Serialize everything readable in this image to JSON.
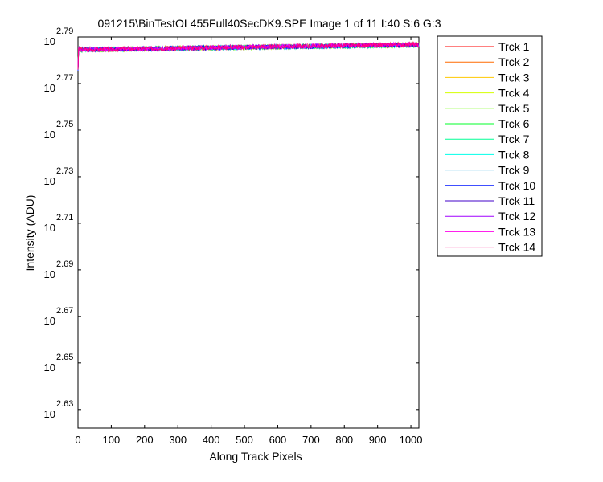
{
  "chart_data": {
    "type": "line",
    "title": "091215\\BinTestOL455Full40SecDK9.SPE  Image 1 of 11  I:40  S:6  G:3",
    "xlabel": "Along Track Pixels",
    "ylabel": "Intensity (ADU)",
    "xlim": [
      0,
      1024
    ],
    "ylim": [
      2.622,
      2.79
    ],
    "yscale": "log10",
    "x_ticks": [
      0,
      100,
      200,
      300,
      400,
      500,
      600,
      700,
      800,
      900,
      1000
    ],
    "x_tick_labels": [
      "0",
      "100",
      "200",
      "300",
      "400",
      "500",
      "600",
      "700",
      "800",
      "900",
      "1000"
    ],
    "y_tick_exponents": [
      2.63,
      2.65,
      2.67,
      2.69,
      2.71,
      2.73,
      2.75,
      2.77,
      2.79
    ],
    "y_tick_exponent_labels": [
      "2.63",
      "2.65",
      "2.67",
      "2.69",
      "2.71",
      "2.73",
      "2.75",
      "2.77",
      "2.79"
    ],
    "y_tick_base": "10",
    "legend_position": "outside-right",
    "grid": false,
    "series": [
      {
        "name": "Trck 1",
        "color": "#ff0000",
        "start_exp": 2.778,
        "end_exp": 2.7866,
        "seed": 1
      },
      {
        "name": "Trck 2",
        "color": "#ff6a00",
        "start_exp": 2.778,
        "end_exp": 2.7868,
        "seed": 2
      },
      {
        "name": "Trck 3",
        "color": "#ffc800",
        "start_exp": 2.778,
        "end_exp": 2.7867,
        "seed": 3
      },
      {
        "name": "Trck 4",
        "color": "#d4ff00",
        "start_exp": 2.778,
        "end_exp": 2.7865,
        "seed": 4
      },
      {
        "name": "Trck 5",
        "color": "#6aff00",
        "start_exp": 2.778,
        "end_exp": 2.7866,
        "seed": 5
      },
      {
        "name": "Trck 6",
        "color": "#00ff2a",
        "start_exp": 2.778,
        "end_exp": 2.7867,
        "seed": 6
      },
      {
        "name": "Trck 7",
        "color": "#00ff95",
        "start_exp": 2.778,
        "end_exp": 2.7865,
        "seed": 7
      },
      {
        "name": "Trck 8",
        "color": "#00ffea",
        "start_exp": 2.778,
        "end_exp": 2.7866,
        "seed": 8
      },
      {
        "name": "Trck 9",
        "color": "#0095d5",
        "start_exp": 2.778,
        "end_exp": 2.7865,
        "seed": 9
      },
      {
        "name": "Trck 10",
        "color": "#0015ff",
        "start_exp": 2.778,
        "end_exp": 2.7866,
        "seed": 10
      },
      {
        "name": "Trck 11",
        "color": "#4000c8",
        "start_exp": 2.778,
        "end_exp": 2.7867,
        "seed": 11
      },
      {
        "name": "Trck 12",
        "color": "#a000ff",
        "start_exp": 2.778,
        "end_exp": 2.7868,
        "seed": 12
      },
      {
        "name": "Trck 13",
        "color": "#ff00ea",
        "start_exp": 2.778,
        "end_exp": 2.7868,
        "seed": 13
      },
      {
        "name": "Trck 14",
        "color": "#ff0080",
        "start_exp": 2.778,
        "end_exp": 2.7868,
        "seed": 14
      }
    ]
  }
}
